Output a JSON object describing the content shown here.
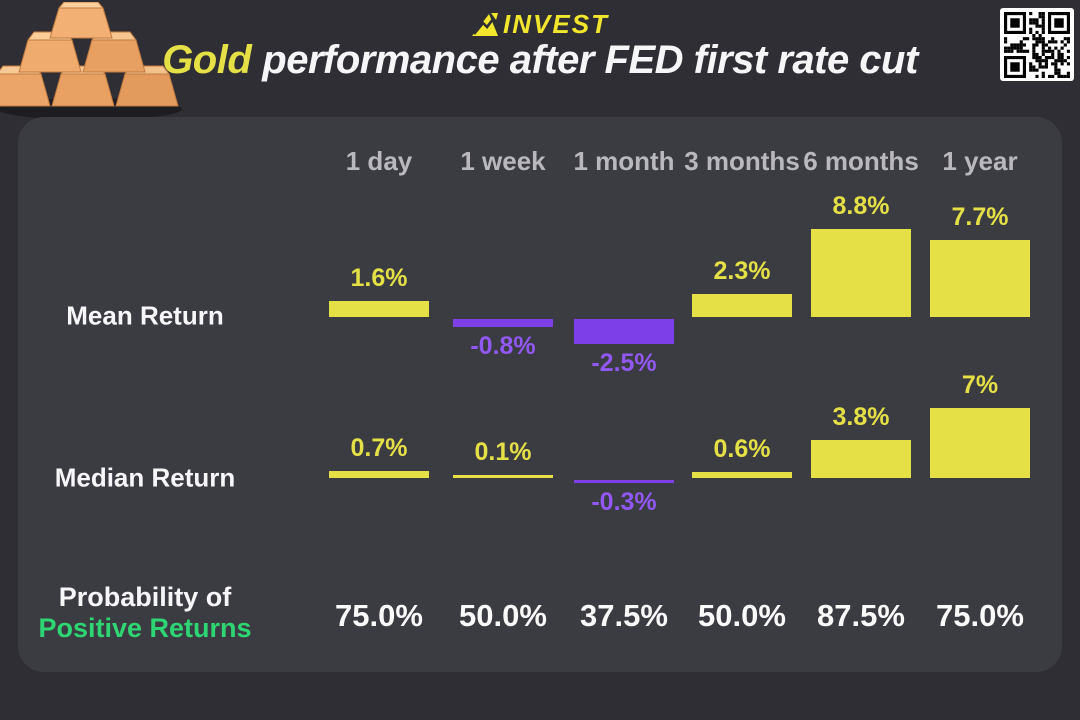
{
  "page": {
    "background": "#2e2e34",
    "panel_color": "#3b3b42"
  },
  "header": {
    "logo_text": "INVEST",
    "logo_color": "#f2e72c",
    "title_highlight": "Gold",
    "title_rest": "performance after FED first rate cut"
  },
  "chart_data": {
    "type": "bar",
    "title": "Gold performance after FED first rate cut",
    "categories": [
      "1 day",
      "1 week",
      "1 month",
      "3 months",
      "6 months",
      "1 year"
    ],
    "series": [
      {
        "name": "Mean Return",
        "values": [
          1.6,
          -0.8,
          -2.5,
          2.3,
          8.8,
          7.7
        ],
        "labels": [
          "1.6%",
          "-0.8%",
          "-2.5%",
          "2.3%",
          "8.8%",
          "7.7%"
        ]
      },
      {
        "name": "Median Return",
        "values": [
          0.7,
          0.1,
          -0.3,
          0.6,
          3.8,
          7
        ],
        "labels": [
          "0.7%",
          "0.1%",
          "-0.3%",
          "0.6%",
          "3.8%",
          "7%"
        ]
      }
    ],
    "probability": {
      "name_line1": "Probability of",
      "name_line2": "Positive Returns",
      "name_color": "#2ed573",
      "values": [
        "75.0%",
        "50.0%",
        "37.5%",
        "50.0%",
        "87.5%",
        "75.0%"
      ]
    },
    "positive_color": "#e4e046",
    "negative_color": "#7d3fe8",
    "negative_label_color": "#9158f4",
    "grid": false,
    "legend_position": "none",
    "ylabel": "",
    "xlabel": ""
  }
}
